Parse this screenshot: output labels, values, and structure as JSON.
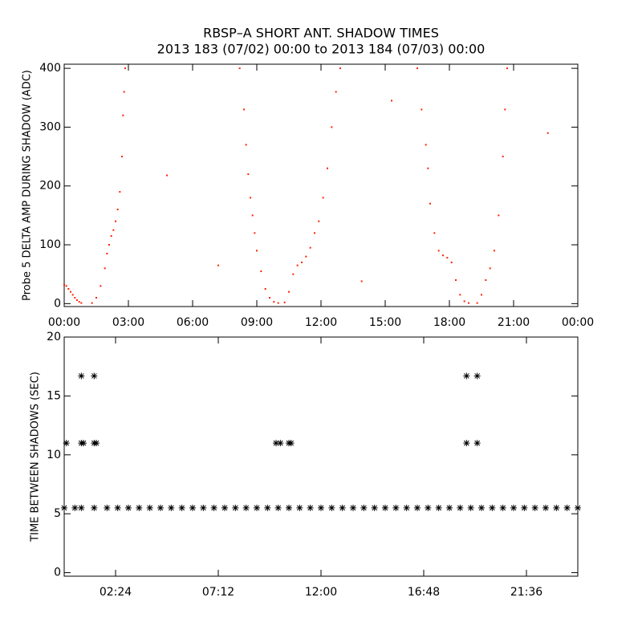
{
  "chart_data": [
    {
      "type": "scatter",
      "title": "RBSP–A SHORT ANT. SHADOW TIMES",
      "subtitle": "2013 183 (07/02) 00:00 to 2013 184 (07/03) 00:00",
      "y_label": "Probe 5 DELTA AMP DURING SHADOW (ADC)",
      "marker": "dot",
      "color": "#ff2000",
      "xlim": [
        0,
        24
      ],
      "xticks": [
        {
          "value": 0,
          "label": "00:00"
        },
        {
          "value": 3,
          "label": "03:00"
        },
        {
          "value": 6,
          "label": "06:00"
        },
        {
          "value": 9,
          "label": "09:00"
        },
        {
          "value": 12,
          "label": "12:00"
        },
        {
          "value": 15,
          "label": "15:00"
        },
        {
          "value": 18,
          "label": "18:00"
        },
        {
          "value": 21,
          "label": "21:00"
        },
        {
          "value": 24,
          "label": "00:00"
        }
      ],
      "ylim": [
        -5,
        407
      ],
      "yticks": [
        0,
        100,
        200,
        300,
        400
      ],
      "x": [
        0,
        0.1,
        0.2,
        0.3,
        0.4,
        0.5,
        0.6,
        0.7,
        0.8,
        1.3,
        1.5,
        1.7,
        1.9,
        2.0,
        2.1,
        2.2,
        2.3,
        2.4,
        2.5,
        2.6,
        2.7,
        2.75,
        2.8,
        2.85,
        4.8,
        7.2,
        8.2,
        8.4,
        8.5,
        8.6,
        8.7,
        8.8,
        8.9,
        9.0,
        9.2,
        9.4,
        9.6,
        9.8,
        10.0,
        10.3,
        10.5,
        10.7,
        10.9,
        11.1,
        11.3,
        11.5,
        11.7,
        11.9,
        12.1,
        12.3,
        12.5,
        12.7,
        12.9,
        13.9,
        15.3,
        16.5,
        16.7,
        16.9,
        17.0,
        17.1,
        17.3,
        17.5,
        17.7,
        17.9,
        18.1,
        18.3,
        18.5,
        18.7,
        18.9,
        19.3,
        19.5,
        19.7,
        19.9,
        20.1,
        20.3,
        20.5,
        20.6,
        20.7,
        22.6
      ],
      "values": [
        32,
        30,
        25,
        20,
        15,
        10,
        6,
        3,
        1,
        1,
        10,
        30,
        60,
        85,
        100,
        115,
        125,
        140,
        160,
        190,
        250,
        320,
        360,
        400,
        218,
        65,
        400,
        330,
        270,
        220,
        180,
        150,
        120,
        90,
        55,
        25,
        10,
        3,
        1,
        2,
        20,
        50,
        65,
        70,
        80,
        95,
        120,
        140,
        180,
        230,
        300,
        360,
        400,
        38,
        345,
        400,
        330,
        270,
        230,
        170,
        120,
        90,
        82,
        78,
        70,
        40,
        15,
        4,
        1,
        1,
        15,
        40,
        60,
        90,
        150,
        250,
        330,
        400,
        290
      ]
    },
    {
      "type": "scatter",
      "y_label": "TIME BETWEEN SHADOWS (SEC)",
      "marker": "asterisk",
      "color": "#000000",
      "xlim": [
        0,
        24
      ],
      "xticks": [
        {
          "value": 2.4,
          "label": "02:24"
        },
        {
          "value": 7.2,
          "label": "07:12"
        },
        {
          "value": 12,
          "label": "12:00"
        },
        {
          "value": 16.8,
          "label": "16:48"
        },
        {
          "value": 21.6,
          "label": "21:36"
        }
      ],
      "ylim": [
        -0.3,
        20
      ],
      "yticks": [
        0,
        5,
        10,
        15,
        20
      ],
      "x": [
        0,
        0.5,
        0.8,
        1.4,
        2.0,
        2.5,
        3.0,
        3.5,
        4.0,
        4.5,
        5.0,
        5.5,
        6.0,
        6.5,
        7.0,
        7.5,
        8.0,
        8.5,
        9.0,
        9.5,
        10.0,
        10.5,
        11.0,
        11.5,
        12.0,
        12.5,
        13.0,
        13.5,
        14.0,
        14.5,
        15.0,
        15.5,
        16.0,
        16.5,
        17.0,
        17.5,
        18.0,
        18.5,
        19.0,
        19.5,
        20.0,
        20.5,
        21.0,
        21.5,
        22.0,
        22.5,
        23.0,
        23.5,
        24.0,
        0.1,
        0.8,
        0.9,
        1.4,
        1.5,
        9.9,
        10.1,
        10.5,
        10.6,
        18.8,
        19.3,
        0.8,
        1.4,
        18.8,
        19.3
      ],
      "values": [
        5.5,
        5.5,
        5.5,
        5.5,
        5.5,
        5.5,
        5.5,
        5.5,
        5.5,
        5.5,
        5.5,
        5.5,
        5.5,
        5.5,
        5.5,
        5.5,
        5.5,
        5.5,
        5.5,
        5.5,
        5.5,
        5.5,
        5.5,
        5.5,
        5.5,
        5.5,
        5.5,
        5.5,
        5.5,
        5.5,
        5.5,
        5.5,
        5.5,
        5.5,
        5.5,
        5.5,
        5.5,
        5.5,
        5.5,
        5.5,
        5.5,
        5.5,
        5.5,
        5.5,
        5.5,
        5.5,
        5.5,
        5.5,
        5.5,
        11,
        11,
        11,
        11,
        11,
        11,
        11,
        11,
        11,
        11,
        11,
        16.7,
        16.7,
        16.7,
        16.7
      ]
    }
  ]
}
